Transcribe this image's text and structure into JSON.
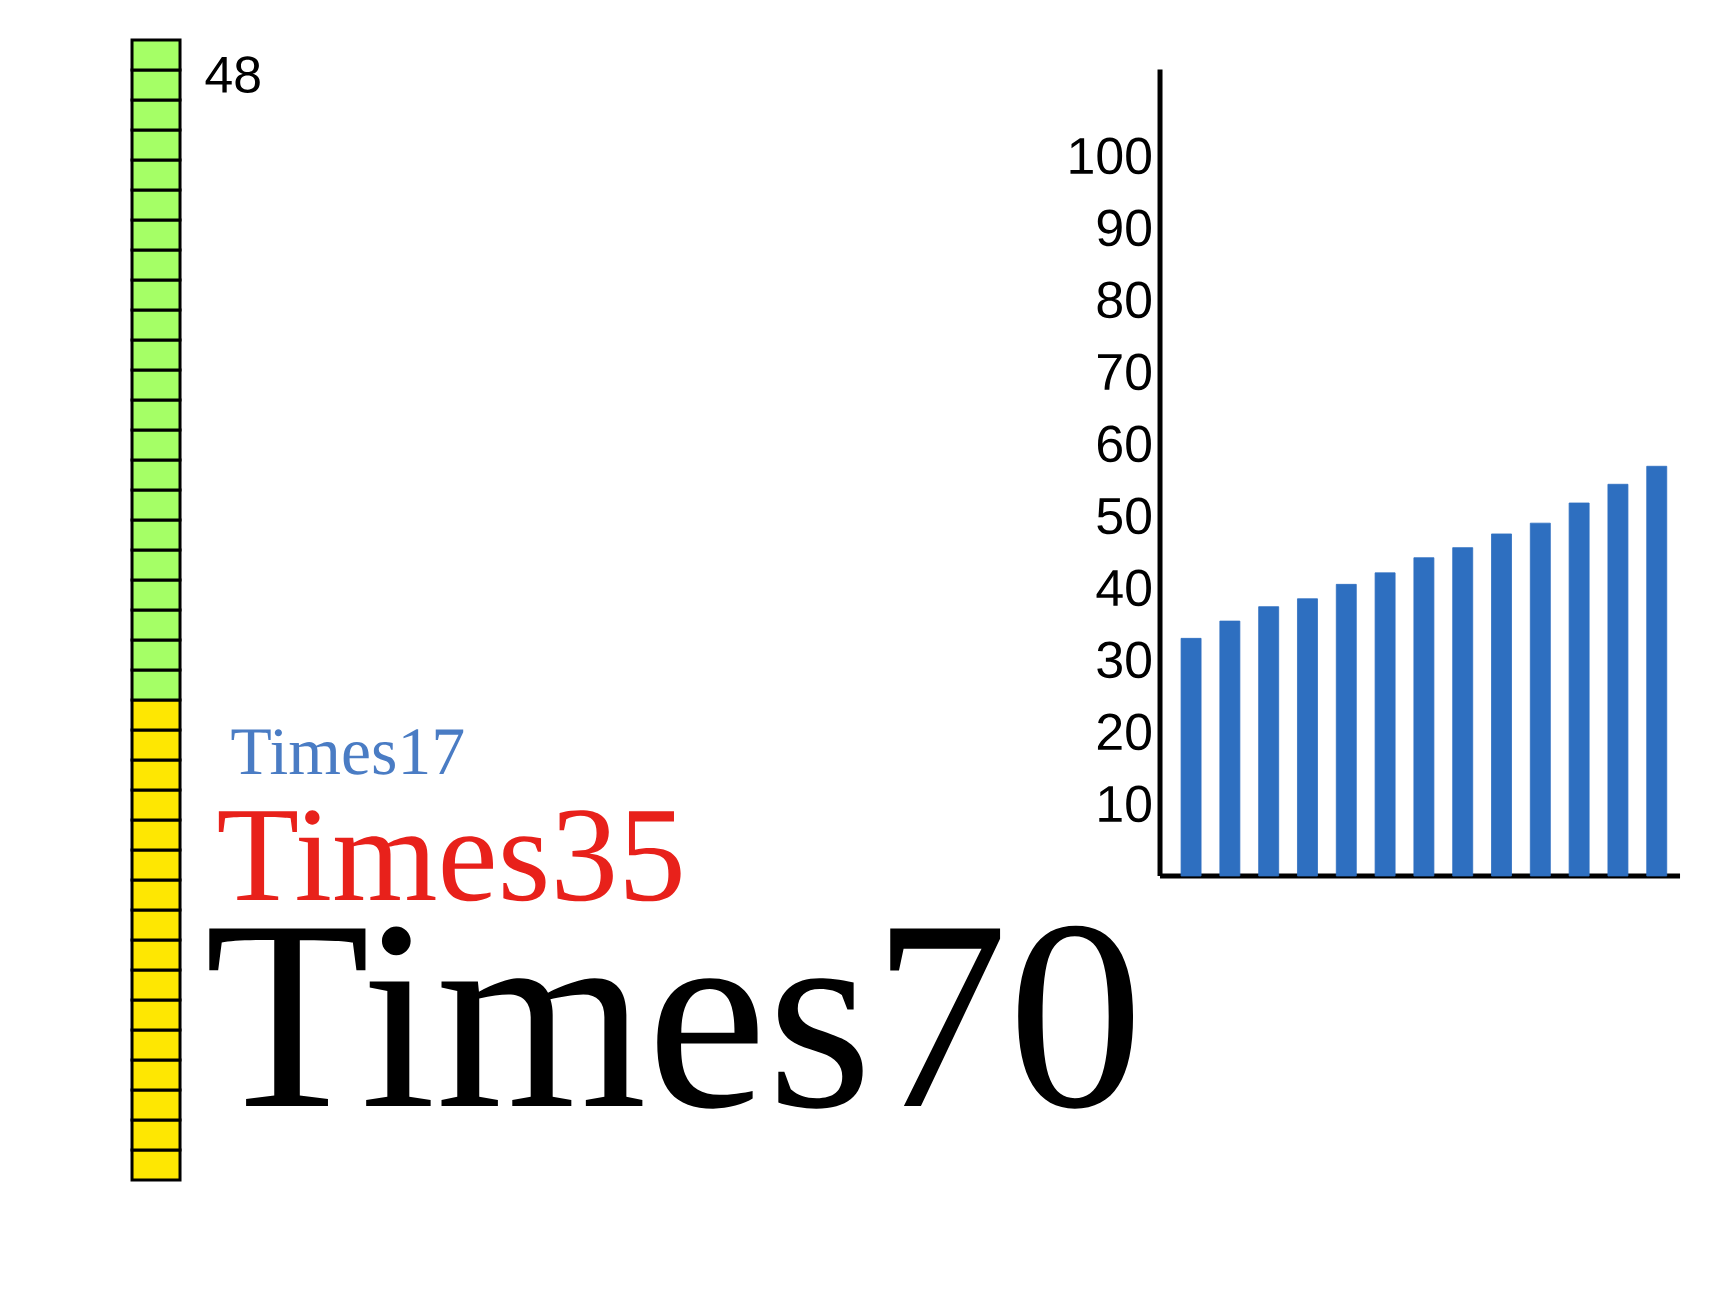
{
  "chart_data": [
    {
      "type": "other",
      "annotations": [
        "48"
      ]
    },
    {
      "type": "bar",
      "categories": [
        null,
        null,
        null,
        null,
        null,
        null,
        null,
        null,
        null,
        null,
        null,
        null,
        null
      ],
      "values": [
        33.0,
        35.4,
        37.4,
        38.5,
        40.5,
        42.1,
        44.2,
        45.6,
        47.5,
        49.0,
        51.8,
        54.4,
        56.9
      ],
      "color": "#2e6fc0",
      "ylim": [
        0,
        112
      ],
      "yticks": [
        10,
        20,
        30,
        40,
        50,
        60,
        70,
        80,
        90,
        100
      ],
      "grid": false
    },
    {
      "type": "other",
      "annotations": [
        "Times17",
        "Times35",
        "Times70"
      ]
    }
  ]
}
